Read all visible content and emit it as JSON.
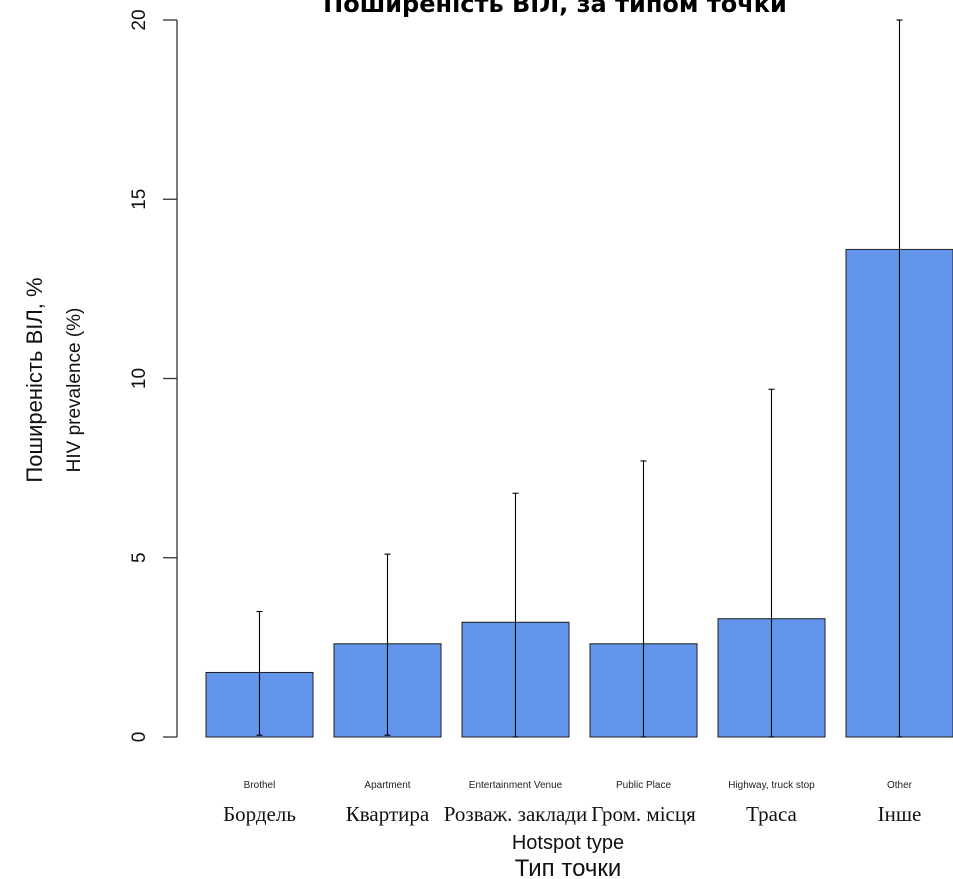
{
  "chart_data": {
    "type": "bar",
    "title": "Поширеність ВІЛ, за типом точки",
    "ylabel": "HIV prevalence (%)",
    "ylabel_uk": "Поширеність ВІЛ, %",
    "xlabel": "Hotspot type",
    "xlabel_uk": "Тип точки",
    "categories": [
      "Brothel",
      "Apartment",
      "Entertainment Venue",
      "Public Place",
      "Highway, truck stop",
      "Other"
    ],
    "categories_uk": [
      "Бордель",
      "Квартира",
      "Розваж. заклади",
      "Гром. місця",
      "Траса",
      "Інше"
    ],
    "values": [
      1.8,
      2.6,
      3.2,
      2.6,
      3.3,
      13.6
    ],
    "error_low": [
      0.05,
      0.05,
      0.0,
      0.0,
      0.0,
      0.0
    ],
    "error_high": [
      3.5,
      5.1,
      6.8,
      7.7,
      9.7,
      20.0
    ],
    "ylim": [
      0,
      20
    ],
    "yticks": [
      0,
      5,
      10,
      15,
      20
    ],
    "grid": false,
    "bar_color": "#6495ED",
    "error_color": "#000000"
  }
}
